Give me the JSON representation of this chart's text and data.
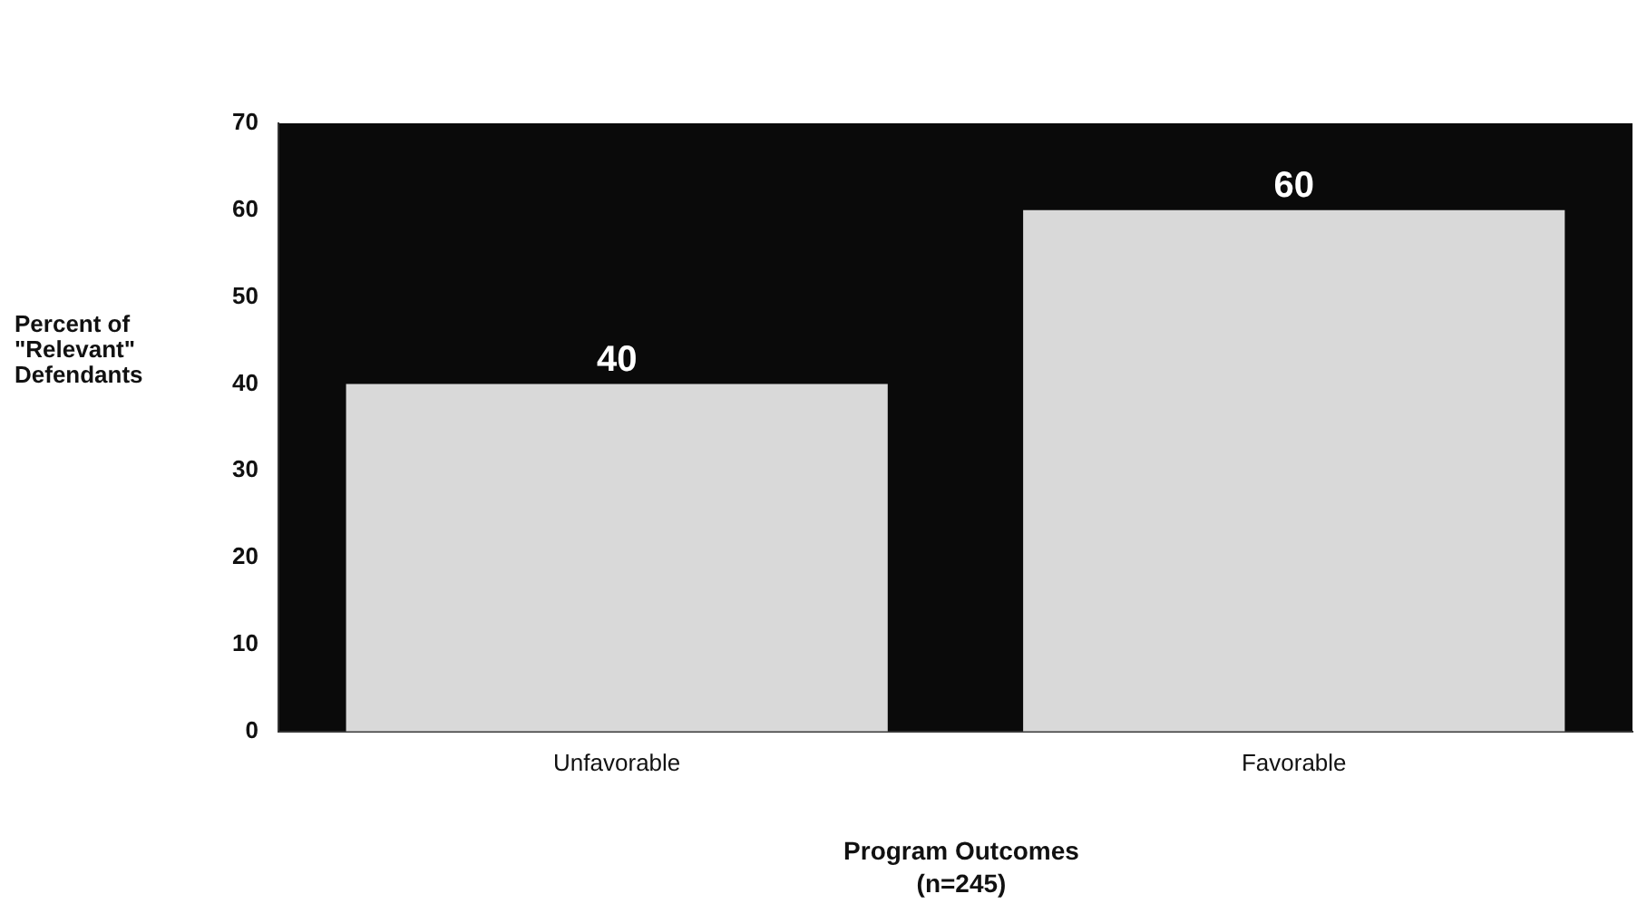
{
  "chart_data": {
    "type": "bar",
    "xlabel": "Program Outcomes\n(n=245)",
    "ylabel": "Percent of\n\"Relevant\"\nDefendants",
    "categories": [
      "Unfavorable",
      "Favorable"
    ],
    "values": [
      40,
      60
    ],
    "color": "#d9d9d9",
    "ylim": [
      0,
      70
    ],
    "yticks": [
      0,
      10,
      20,
      30,
      40,
      50,
      60,
      70
    ],
    "grid": false,
    "legend": false,
    "data_labels": true
  }
}
